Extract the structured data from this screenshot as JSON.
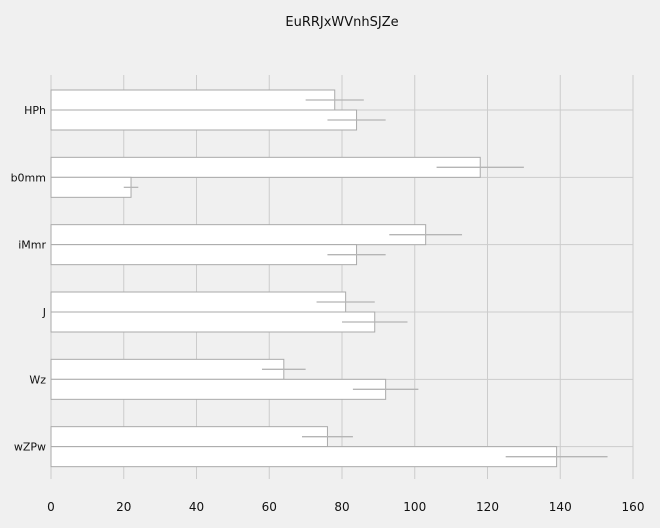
{
  "chart_data": {
    "type": "bar",
    "orientation": "horizontal",
    "title": "EuRRJxWVnhSJZe",
    "xlabel": "",
    "ylabel": "",
    "categories": [
      "HPh",
      "b0mm",
      "iMmr",
      "J",
      "Wz",
      "wZPw"
    ],
    "xlim": [
      0,
      160
    ],
    "xticks": [
      0,
      20,
      40,
      60,
      80,
      100,
      120,
      140,
      160
    ],
    "grid": true,
    "legend": "none",
    "colors": {
      "background": "#f0f0f0",
      "bar_fill": "#ffffff",
      "bar_stroke": "#aaaaaa",
      "grid": "#cccccc",
      "error": "#b5b5b5"
    },
    "series": [
      {
        "values": [
          78,
          118,
          103,
          81,
          64,
          76
        ],
        "errors": [
          8,
          12,
          10,
          8,
          6,
          7
        ]
      },
      {
        "values": [
          84,
          22,
          84,
          89,
          92,
          139
        ],
        "errors": [
          8,
          2,
          8,
          9,
          9,
          14
        ]
      }
    ]
  }
}
